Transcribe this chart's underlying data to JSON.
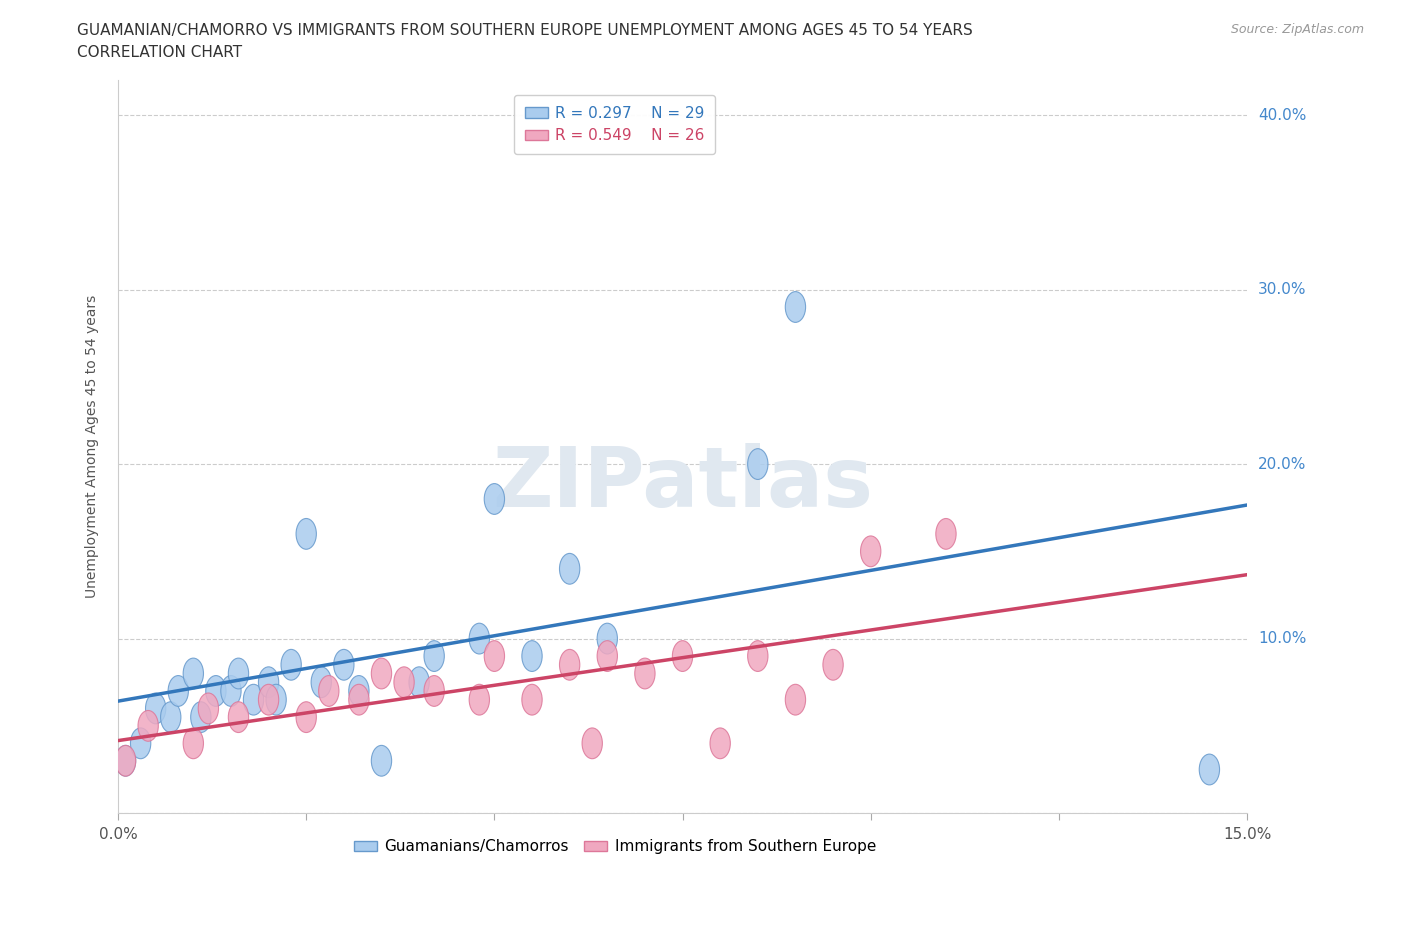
{
  "title_line1": "GUAMANIAN/CHAMORRO VS IMMIGRANTS FROM SOUTHERN EUROPE UNEMPLOYMENT AMONG AGES 45 TO 54 YEARS",
  "title_line2": "CORRELATION CHART",
  "source": "Source: ZipAtlas.com",
  "ylabel": "Unemployment Among Ages 45 to 54 years",
  "xlim": [
    0.0,
    0.15
  ],
  "ylim": [
    0.0,
    0.42
  ],
  "xticks": [
    0.0,
    0.025,
    0.05,
    0.075,
    0.1,
    0.125,
    0.15
  ],
  "yticks": [
    0.0,
    0.1,
    0.2,
    0.3,
    0.4
  ],
  "blue_color": "#aaccee",
  "pink_color": "#f0a8c0",
  "blue_edge_color": "#6699cc",
  "pink_edge_color": "#dd7799",
  "blue_line_color": "#3377bb",
  "pink_line_color": "#cc4466",
  "legend_R1": "R = 0.297",
  "legend_N1": "N = 29",
  "legend_R2": "R = 0.549",
  "legend_N2": "N = 26",
  "yaxis_label_color": "#4488cc",
  "blue_scatter_x": [
    0.001,
    0.003,
    0.005,
    0.007,
    0.008,
    0.01,
    0.011,
    0.013,
    0.015,
    0.016,
    0.018,
    0.02,
    0.021,
    0.023,
    0.025,
    0.027,
    0.03,
    0.032,
    0.035,
    0.04,
    0.042,
    0.048,
    0.05,
    0.055,
    0.06,
    0.065,
    0.085,
    0.09,
    0.145
  ],
  "blue_scatter_y": [
    0.03,
    0.04,
    0.06,
    0.055,
    0.07,
    0.08,
    0.055,
    0.07,
    0.07,
    0.08,
    0.065,
    0.075,
    0.065,
    0.085,
    0.16,
    0.075,
    0.085,
    0.07,
    0.03,
    0.075,
    0.09,
    0.1,
    0.18,
    0.09,
    0.14,
    0.1,
    0.2,
    0.29,
    0.025
  ],
  "pink_scatter_x": [
    0.001,
    0.004,
    0.01,
    0.012,
    0.016,
    0.02,
    0.025,
    0.028,
    0.032,
    0.035,
    0.038,
    0.042,
    0.048,
    0.05,
    0.055,
    0.06,
    0.063,
    0.065,
    0.07,
    0.075,
    0.08,
    0.085,
    0.09,
    0.095,
    0.1,
    0.11
  ],
  "pink_scatter_y": [
    0.03,
    0.05,
    0.04,
    0.06,
    0.055,
    0.065,
    0.055,
    0.07,
    0.065,
    0.08,
    0.075,
    0.07,
    0.065,
    0.09,
    0.065,
    0.085,
    0.04,
    0.09,
    0.08,
    0.09,
    0.04,
    0.09,
    0.065,
    0.085,
    0.15,
    0.16
  ],
  "watermark_text": "ZIPatlas",
  "watermark_color": "#e0e8f0",
  "bg_color": "#ffffff"
}
